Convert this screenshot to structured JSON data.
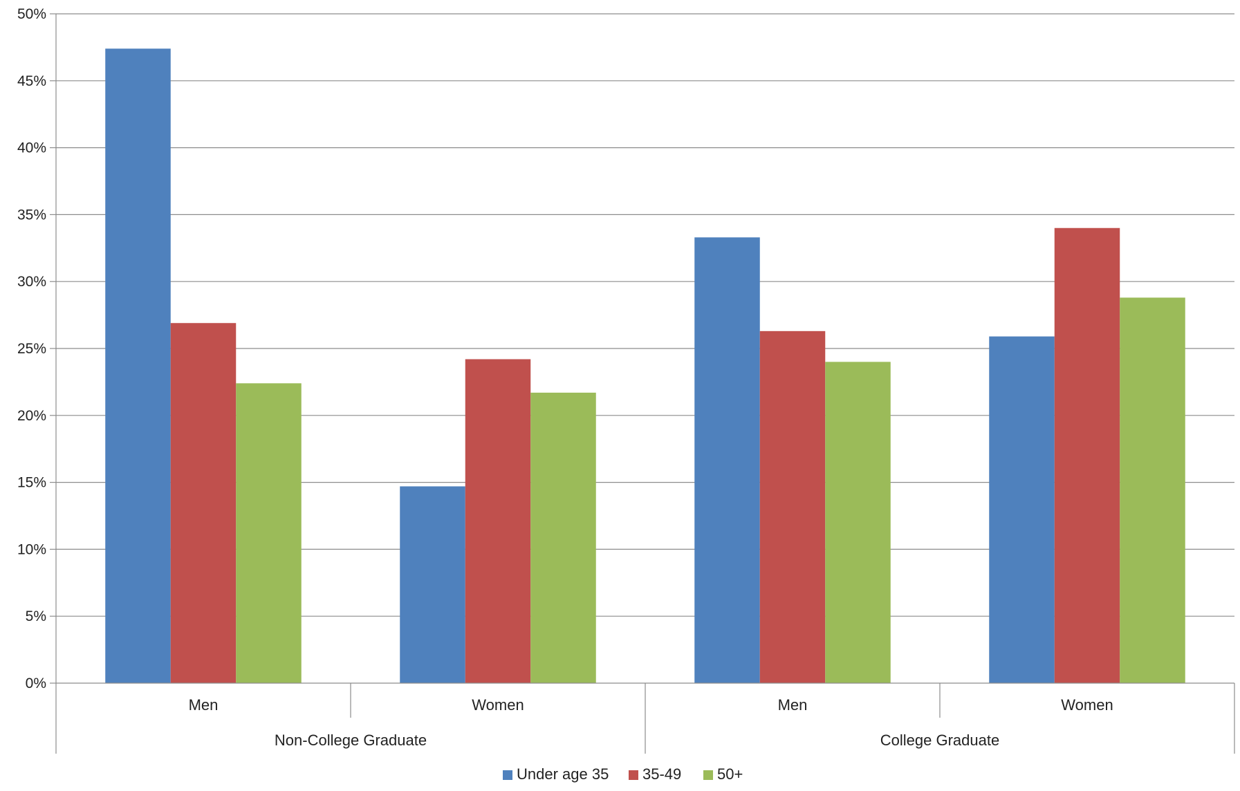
{
  "chart_data": {
    "type": "bar",
    "groups": [
      "Non-College Graduate",
      "College Graduate"
    ],
    "categories": [
      "Men",
      "Women",
      "Men",
      "Women"
    ],
    "category_groups": [
      0,
      0,
      1,
      1
    ],
    "series": [
      {
        "name": "Under age 35",
        "color": "#4F81BD",
        "values": [
          47.4,
          14.7,
          33.3,
          25.9
        ]
      },
      {
        "name": "35-49",
        "color": "#C0504D",
        "values": [
          26.9,
          24.2,
          26.3,
          34.0
        ]
      },
      {
        "name": "50+",
        "color": "#9BBB59",
        "values": [
          22.4,
          21.7,
          24.0,
          28.8
        ]
      }
    ],
    "ylim": [
      0,
      50
    ],
    "yticks": [
      0,
      5,
      10,
      15,
      20,
      25,
      30,
      35,
      40,
      45,
      50
    ],
    "ytick_labels": [
      "0%",
      "5%",
      "10%",
      "15%",
      "20%",
      "25%",
      "30%",
      "35%",
      "40%",
      "45%",
      "50%"
    ],
    "grid": true,
    "legend_position": "bottom"
  }
}
